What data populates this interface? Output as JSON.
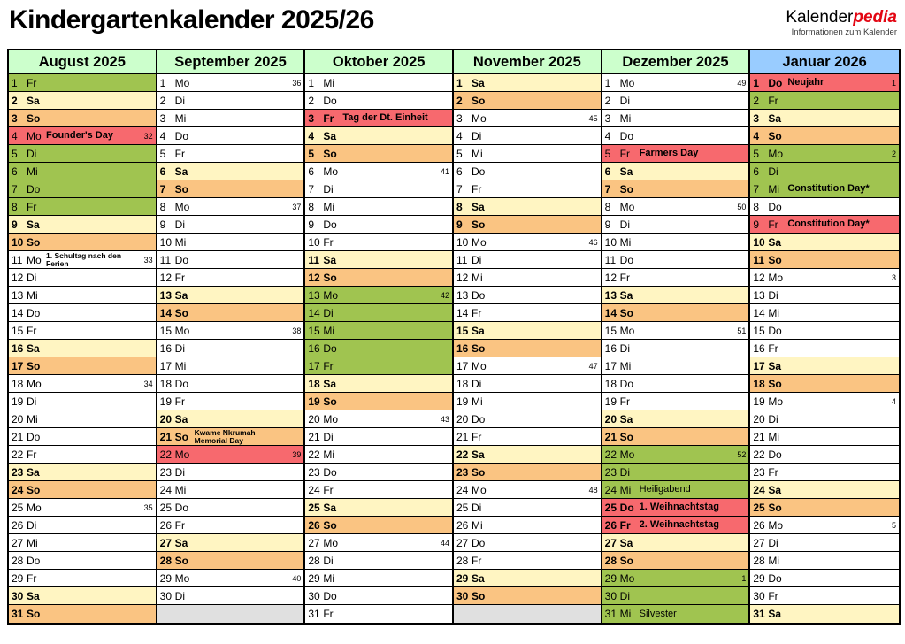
{
  "title": "Kindergartenkalender 2025/26",
  "logo": {
    "part1": "Kalender",
    "part2": "pedia",
    "subtitle": "Informationen zum Kalender"
  },
  "colors": {
    "green": "#a0c450",
    "saturday": "#fff5c2",
    "sunday": "#fac482",
    "holiday": "#f7696e",
    "empty": "#e0e0e0",
    "month_header_green": "#ccffcc",
    "month_header_blue": "#99ccff",
    "logo_red": "#e30613"
  },
  "months": [
    {
      "name": "August 2025",
      "hdr": "green",
      "days": [
        {
          "d": 1,
          "wd": "Fr",
          "c": "g"
        },
        {
          "d": 2,
          "wd": "Sa",
          "c": "y"
        },
        {
          "d": 3,
          "wd": "So",
          "c": "o"
        },
        {
          "d": 4,
          "wd": "Mo",
          "c": "r",
          "e": "Founder's Day",
          "wk": "32"
        },
        {
          "d": 5,
          "wd": "Di",
          "c": "g"
        },
        {
          "d": 6,
          "wd": "Mi",
          "c": "g"
        },
        {
          "d": 7,
          "wd": "Do",
          "c": "g"
        },
        {
          "d": 8,
          "wd": "Fr",
          "c": "g"
        },
        {
          "d": 9,
          "wd": "Sa",
          "c": "y"
        },
        {
          "d": 10,
          "wd": "So",
          "c": "o"
        },
        {
          "d": 11,
          "wd": "Mo",
          "c": "w",
          "e": "1. Schultag nach den Ferien",
          "es": true,
          "wk": "33"
        },
        {
          "d": 12,
          "wd": "Di",
          "c": "w"
        },
        {
          "d": 13,
          "wd": "Mi",
          "c": "w"
        },
        {
          "d": 14,
          "wd": "Do",
          "c": "w"
        },
        {
          "d": 15,
          "wd": "Fr",
          "c": "w"
        },
        {
          "d": 16,
          "wd": "Sa",
          "c": "y"
        },
        {
          "d": 17,
          "wd": "So",
          "c": "o"
        },
        {
          "d": 18,
          "wd": "Mo",
          "c": "w",
          "wk": "34"
        },
        {
          "d": 19,
          "wd": "Di",
          "c": "w"
        },
        {
          "d": 20,
          "wd": "Mi",
          "c": "w"
        },
        {
          "d": 21,
          "wd": "Do",
          "c": "w"
        },
        {
          "d": 22,
          "wd": "Fr",
          "c": "w"
        },
        {
          "d": 23,
          "wd": "Sa",
          "c": "y"
        },
        {
          "d": 24,
          "wd": "So",
          "c": "o"
        },
        {
          "d": 25,
          "wd": "Mo",
          "c": "w",
          "wk": "35"
        },
        {
          "d": 26,
          "wd": "Di",
          "c": "w"
        },
        {
          "d": 27,
          "wd": "Mi",
          "c": "w"
        },
        {
          "d": 28,
          "wd": "Do",
          "c": "w"
        },
        {
          "d": 29,
          "wd": "Fr",
          "c": "w"
        },
        {
          "d": 30,
          "wd": "Sa",
          "c": "y"
        },
        {
          "d": 31,
          "wd": "So",
          "c": "o"
        }
      ]
    },
    {
      "name": "September 2025",
      "hdr": "green",
      "days": [
        {
          "d": 1,
          "wd": "Mo",
          "c": "w",
          "wk": "36"
        },
        {
          "d": 2,
          "wd": "Di",
          "c": "w"
        },
        {
          "d": 3,
          "wd": "Mi",
          "c": "w"
        },
        {
          "d": 4,
          "wd": "Do",
          "c": "w"
        },
        {
          "d": 5,
          "wd": "Fr",
          "c": "w"
        },
        {
          "d": 6,
          "wd": "Sa",
          "c": "y"
        },
        {
          "d": 7,
          "wd": "So",
          "c": "o"
        },
        {
          "d": 8,
          "wd": "Mo",
          "c": "w",
          "wk": "37"
        },
        {
          "d": 9,
          "wd": "Di",
          "c": "w"
        },
        {
          "d": 10,
          "wd": "Mi",
          "c": "w"
        },
        {
          "d": 11,
          "wd": "Do",
          "c": "w"
        },
        {
          "d": 12,
          "wd": "Fr",
          "c": "w"
        },
        {
          "d": 13,
          "wd": "Sa",
          "c": "y"
        },
        {
          "d": 14,
          "wd": "So",
          "c": "o"
        },
        {
          "d": 15,
          "wd": "Mo",
          "c": "w",
          "wk": "38"
        },
        {
          "d": 16,
          "wd": "Di",
          "c": "w"
        },
        {
          "d": 17,
          "wd": "Mi",
          "c": "w"
        },
        {
          "d": 18,
          "wd": "Do",
          "c": "w"
        },
        {
          "d": 19,
          "wd": "Fr",
          "c": "w"
        },
        {
          "d": 20,
          "wd": "Sa",
          "c": "y"
        },
        {
          "d": 21,
          "wd": "So",
          "c": "o",
          "e": "Kwame Nkrumah Memorial Day",
          "es": true
        },
        {
          "d": 22,
          "wd": "Mo",
          "c": "r",
          "wk": "39"
        },
        {
          "d": 23,
          "wd": "Di",
          "c": "w"
        },
        {
          "d": 24,
          "wd": "Mi",
          "c": "w"
        },
        {
          "d": 25,
          "wd": "Do",
          "c": "w"
        },
        {
          "d": 26,
          "wd": "Fr",
          "c": "w"
        },
        {
          "d": 27,
          "wd": "Sa",
          "c": "y"
        },
        {
          "d": 28,
          "wd": "So",
          "c": "o"
        },
        {
          "d": 29,
          "wd": "Mo",
          "c": "w",
          "wk": "40"
        },
        {
          "d": 30,
          "wd": "Di",
          "c": "w"
        },
        {
          "c": "x"
        }
      ]
    },
    {
      "name": "Oktober 2025",
      "hdr": "green",
      "days": [
        {
          "d": 1,
          "wd": "Mi",
          "c": "w"
        },
        {
          "d": 2,
          "wd": "Do",
          "c": "w"
        },
        {
          "d": 3,
          "wd": "Fr",
          "c": "r",
          "e": "Tag der Dt. Einheit",
          "db": true
        },
        {
          "d": 4,
          "wd": "Sa",
          "c": "y"
        },
        {
          "d": 5,
          "wd": "So",
          "c": "o"
        },
        {
          "d": 6,
          "wd": "Mo",
          "c": "w",
          "wk": "41"
        },
        {
          "d": 7,
          "wd": "Di",
          "c": "w"
        },
        {
          "d": 8,
          "wd": "Mi",
          "c": "w"
        },
        {
          "d": 9,
          "wd": "Do",
          "c": "w"
        },
        {
          "d": 10,
          "wd": "Fr",
          "c": "w"
        },
        {
          "d": 11,
          "wd": "Sa",
          "c": "y"
        },
        {
          "d": 12,
          "wd": "So",
          "c": "o"
        },
        {
          "d": 13,
          "wd": "Mo",
          "c": "g",
          "wk": "42"
        },
        {
          "d": 14,
          "wd": "Di",
          "c": "g"
        },
        {
          "d": 15,
          "wd": "Mi",
          "c": "g"
        },
        {
          "d": 16,
          "wd": "Do",
          "c": "g"
        },
        {
          "d": 17,
          "wd": "Fr",
          "c": "g"
        },
        {
          "d": 18,
          "wd": "Sa",
          "c": "y"
        },
        {
          "d": 19,
          "wd": "So",
          "c": "o"
        },
        {
          "d": 20,
          "wd": "Mo",
          "c": "w",
          "wk": "43"
        },
        {
          "d": 21,
          "wd": "Di",
          "c": "w"
        },
        {
          "d": 22,
          "wd": "Mi",
          "c": "w"
        },
        {
          "d": 23,
          "wd": "Do",
          "c": "w"
        },
        {
          "d": 24,
          "wd": "Fr",
          "c": "w"
        },
        {
          "d": 25,
          "wd": "Sa",
          "c": "y"
        },
        {
          "d": 26,
          "wd": "So",
          "c": "o"
        },
        {
          "d": 27,
          "wd": "Mo",
          "c": "w",
          "wk": "44"
        },
        {
          "d": 28,
          "wd": "Di",
          "c": "w"
        },
        {
          "d": 29,
          "wd": "Mi",
          "c": "w"
        },
        {
          "d": 30,
          "wd": "Do",
          "c": "w"
        },
        {
          "d": 31,
          "wd": "Fr",
          "c": "w"
        }
      ]
    },
    {
      "name": "November 2025",
      "hdr": "green",
      "days": [
        {
          "d": 1,
          "wd": "Sa",
          "c": "y"
        },
        {
          "d": 2,
          "wd": "So",
          "c": "o"
        },
        {
          "d": 3,
          "wd": "Mo",
          "c": "w",
          "wk": "45"
        },
        {
          "d": 4,
          "wd": "Di",
          "c": "w"
        },
        {
          "d": 5,
          "wd": "Mi",
          "c": "w"
        },
        {
          "d": 6,
          "wd": "Do",
          "c": "w"
        },
        {
          "d": 7,
          "wd": "Fr",
          "c": "w"
        },
        {
          "d": 8,
          "wd": "Sa",
          "c": "y"
        },
        {
          "d": 9,
          "wd": "So",
          "c": "o"
        },
        {
          "d": 10,
          "wd": "Mo",
          "c": "w",
          "wk": "46"
        },
        {
          "d": 11,
          "wd": "Di",
          "c": "w"
        },
        {
          "d": 12,
          "wd": "Mi",
          "c": "w"
        },
        {
          "d": 13,
          "wd": "Do",
          "c": "w"
        },
        {
          "d": 14,
          "wd": "Fr",
          "c": "w"
        },
        {
          "d": 15,
          "wd": "Sa",
          "c": "y"
        },
        {
          "d": 16,
          "wd": "So",
          "c": "o"
        },
        {
          "d": 17,
          "wd": "Mo",
          "c": "w",
          "wk": "47"
        },
        {
          "d": 18,
          "wd": "Di",
          "c": "w"
        },
        {
          "d": 19,
          "wd": "Mi",
          "c": "w"
        },
        {
          "d": 20,
          "wd": "Do",
          "c": "w"
        },
        {
          "d": 21,
          "wd": "Fr",
          "c": "w"
        },
        {
          "d": 22,
          "wd": "Sa",
          "c": "y"
        },
        {
          "d": 23,
          "wd": "So",
          "c": "o"
        },
        {
          "d": 24,
          "wd": "Mo",
          "c": "w",
          "wk": "48"
        },
        {
          "d": 25,
          "wd": "Di",
          "c": "w"
        },
        {
          "d": 26,
          "wd": "Mi",
          "c": "w"
        },
        {
          "d": 27,
          "wd": "Do",
          "c": "w"
        },
        {
          "d": 28,
          "wd": "Fr",
          "c": "w"
        },
        {
          "d": 29,
          "wd": "Sa",
          "c": "y"
        },
        {
          "d": 30,
          "wd": "So",
          "c": "o"
        },
        {
          "c": "x"
        }
      ]
    },
    {
      "name": "Dezember 2025",
      "hdr": "green",
      "days": [
        {
          "d": 1,
          "wd": "Mo",
          "c": "w",
          "wk": "49"
        },
        {
          "d": 2,
          "wd": "Di",
          "c": "w"
        },
        {
          "d": 3,
          "wd": "Mi",
          "c": "w"
        },
        {
          "d": 4,
          "wd": "Do",
          "c": "w"
        },
        {
          "d": 5,
          "wd": "Fr",
          "c": "r",
          "e": "Farmers Day"
        },
        {
          "d": 6,
          "wd": "Sa",
          "c": "y"
        },
        {
          "d": 7,
          "wd": "So",
          "c": "o"
        },
        {
          "d": 8,
          "wd": "Mo",
          "c": "w",
          "wk": "50"
        },
        {
          "d": 9,
          "wd": "Di",
          "c": "w"
        },
        {
          "d": 10,
          "wd": "Mi",
          "c": "w"
        },
        {
          "d": 11,
          "wd": "Do",
          "c": "w"
        },
        {
          "d": 12,
          "wd": "Fr",
          "c": "w"
        },
        {
          "d": 13,
          "wd": "Sa",
          "c": "y"
        },
        {
          "d": 14,
          "wd": "So",
          "c": "o"
        },
        {
          "d": 15,
          "wd": "Mo",
          "c": "w",
          "wk": "51"
        },
        {
          "d": 16,
          "wd": "Di",
          "c": "w"
        },
        {
          "d": 17,
          "wd": "Mi",
          "c": "w"
        },
        {
          "d": 18,
          "wd": "Do",
          "c": "w"
        },
        {
          "d": 19,
          "wd": "Fr",
          "c": "w"
        },
        {
          "d": 20,
          "wd": "Sa",
          "c": "y"
        },
        {
          "d": 21,
          "wd": "So",
          "c": "o"
        },
        {
          "d": 22,
          "wd": "Mo",
          "c": "g",
          "wk": "52"
        },
        {
          "d": 23,
          "wd": "Di",
          "c": "g"
        },
        {
          "d": 24,
          "wd": "Mi",
          "c": "g",
          "e": "Heiligabend",
          "er": true
        },
        {
          "d": 25,
          "wd": "Do",
          "c": "r",
          "e": "1. Weihnachtstag",
          "db": true
        },
        {
          "d": 26,
          "wd": "Fr",
          "c": "r",
          "e": "2. Weihnachtstag",
          "db": true
        },
        {
          "d": 27,
          "wd": "Sa",
          "c": "y"
        },
        {
          "d": 28,
          "wd": "So",
          "c": "o"
        },
        {
          "d": 29,
          "wd": "Mo",
          "c": "g",
          "wk": "1"
        },
        {
          "d": 30,
          "wd": "Di",
          "c": "g"
        },
        {
          "d": 31,
          "wd": "Mi",
          "c": "g",
          "e": "Silvester",
          "er": true
        }
      ]
    },
    {
      "name": "Januar 2026",
      "hdr": "blue",
      "days": [
        {
          "d": 1,
          "wd": "Do",
          "c": "r",
          "e": "Neujahr",
          "db": true,
          "wk": "1"
        },
        {
          "d": 2,
          "wd": "Fr",
          "c": "g"
        },
        {
          "d": 3,
          "wd": "Sa",
          "c": "y"
        },
        {
          "d": 4,
          "wd": "So",
          "c": "o"
        },
        {
          "d": 5,
          "wd": "Mo",
          "c": "g",
          "wk": "2"
        },
        {
          "d": 6,
          "wd": "Di",
          "c": "g"
        },
        {
          "d": 7,
          "wd": "Mi",
          "c": "g",
          "e": "Constitution Day*"
        },
        {
          "d": 8,
          "wd": "Do",
          "c": "w"
        },
        {
          "d": 9,
          "wd": "Fr",
          "c": "r",
          "e": "Constitution Day*"
        },
        {
          "d": 10,
          "wd": "Sa",
          "c": "y"
        },
        {
          "d": 11,
          "wd": "So",
          "c": "o"
        },
        {
          "d": 12,
          "wd": "Mo",
          "c": "w",
          "wk": "3"
        },
        {
          "d": 13,
          "wd": "Di",
          "c": "w"
        },
        {
          "d": 14,
          "wd": "Mi",
          "c": "w"
        },
        {
          "d": 15,
          "wd": "Do",
          "c": "w"
        },
        {
          "d": 16,
          "wd": "Fr",
          "c": "w"
        },
        {
          "d": 17,
          "wd": "Sa",
          "c": "y"
        },
        {
          "d": 18,
          "wd": "So",
          "c": "o"
        },
        {
          "d": 19,
          "wd": "Mo",
          "c": "w",
          "wk": "4"
        },
        {
          "d": 20,
          "wd": "Di",
          "c": "w"
        },
        {
          "d": 21,
          "wd": "Mi",
          "c": "w"
        },
        {
          "d": 22,
          "wd": "Do",
          "c": "w"
        },
        {
          "d": 23,
          "wd": "Fr",
          "c": "w"
        },
        {
          "d": 24,
          "wd": "Sa",
          "c": "y"
        },
        {
          "d": 25,
          "wd": "So",
          "c": "o"
        },
        {
          "d": 26,
          "wd": "Mo",
          "c": "w",
          "wk": "5"
        },
        {
          "d": 27,
          "wd": "Di",
          "c": "w"
        },
        {
          "d": 28,
          "wd": "Mi",
          "c": "w"
        },
        {
          "d": 29,
          "wd": "Do",
          "c": "w"
        },
        {
          "d": 30,
          "wd": "Fr",
          "c": "w"
        },
        {
          "d": 31,
          "wd": "Sa",
          "c": "y"
        }
      ]
    }
  ]
}
